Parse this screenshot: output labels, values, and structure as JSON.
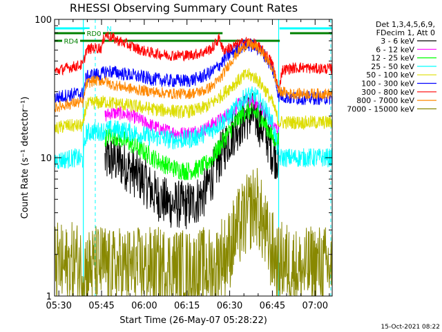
{
  "chart_data": {
    "type": "line",
    "title": "RHESSI Observing Summary Count Rates",
    "xlabel": "Start Time (26-May-07 05:28:22)",
    "ylabel": "Count Rate (s⁻¹ detector⁻¹)",
    "yscale": "log",
    "ylim": [
      1,
      100
    ],
    "xlim_minutes": [
      -1.5,
      96
    ],
    "grid": false,
    "x_ticks": [
      {
        "min": 0,
        "label": "05:30"
      },
      {
        "min": 15,
        "label": "05:45"
      },
      {
        "min": 30,
        "label": "06:00"
      },
      {
        "min": 45,
        "label": "06:15"
      },
      {
        "min": 60,
        "label": "06:30"
      },
      {
        "min": 75,
        "label": "06:45"
      },
      {
        "min": 90,
        "label": "07:00"
      }
    ],
    "y_ticks": [
      {
        "value": 1,
        "label": "1"
      },
      {
        "value": 10,
        "label": "10"
      },
      {
        "value": 100,
        "label": "100"
      }
    ],
    "legend": {
      "placement": "right",
      "header": [
        "Det 1,3,4,5,6,9,",
        "FDecim 1, Att 0"
      ]
    },
    "series": [
      {
        "name": "3 - 6 keV",
        "color": "#000000",
        "x": [
          16.2,
          18,
          21,
          24,
          27,
          30,
          33,
          36,
          39,
          42,
          45,
          48,
          51,
          54,
          57,
          60,
          63,
          66,
          69,
          72,
          75,
          77.2
        ],
        "y": [
          9.5,
          9.8,
          9.4,
          8.5,
          7.6,
          6.8,
          5.6,
          5.0,
          4.6,
          4.6,
          4.5,
          4.8,
          5.5,
          7.5,
          10.5,
          14,
          17,
          20,
          20,
          16,
          11,
          10
        ]
      },
      {
        "name": "6 - 12 keV",
        "color": "#ff00ff",
        "x": [
          16.2,
          18,
          21,
          24,
          27,
          30,
          33,
          36,
          39,
          42,
          45,
          48,
          51,
          54,
          57,
          60,
          63,
          66,
          69,
          72,
          75,
          77.2
        ],
        "y": [
          20,
          21,
          21,
          20.5,
          19.5,
          18,
          17,
          16,
          15.5,
          15,
          15,
          15.5,
          16,
          17.5,
          19,
          21,
          24,
          26,
          25,
          22,
          17,
          16
        ]
      },
      {
        "name": "12 - 25 keV",
        "color": "#00ff00",
        "x": [
          16.2,
          18,
          21,
          24,
          27,
          30,
          33,
          36,
          39,
          42,
          45,
          48,
          51,
          54,
          57,
          60,
          63,
          66,
          69,
          72,
          75,
          77.2
        ],
        "y": [
          14,
          14.5,
          14,
          13,
          12,
          11,
          10,
          9.2,
          8.6,
          8.2,
          8,
          8.2,
          8.7,
          10,
          12.5,
          15.5,
          19,
          22,
          21,
          18,
          14,
          13
        ]
      },
      {
        "name": "25 - 50 keV",
        "color": "#00ffff",
        "x": [
          -1.5,
          2,
          6,
          8.6,
          9.6,
          12,
          15,
          16.2,
          18,
          21,
          24,
          27,
          30,
          33,
          36,
          39,
          42,
          45,
          48,
          51,
          54,
          57,
          60,
          63,
          66,
          69,
          72,
          75,
          77.2,
          78.5,
          81,
          85,
          90,
          96
        ],
        "y": [
          9.5,
          9.7,
          10,
          9.6,
          15,
          15.5,
          15.5,
          15.8,
          16,
          16,
          15.5,
          15,
          14.5,
          14,
          14,
          13.5,
          13.5,
          13.5,
          14,
          15,
          16,
          18,
          20,
          24,
          28,
          28,
          23,
          18,
          10,
          10,
          10,
          10,
          10,
          10
        ]
      },
      {
        "name": "50 - 100 keV",
        "color": "#dddd00",
        "x": [
          -1.5,
          2,
          6,
          8.6,
          9.6,
          12,
          15,
          16.2,
          18,
          21,
          24,
          27,
          30,
          33,
          36,
          39,
          42,
          45,
          48,
          51,
          54,
          57,
          60,
          63,
          66,
          69,
          72,
          75,
          77.2,
          78.5,
          81,
          85,
          90,
          96
        ],
        "y": [
          16,
          17,
          17,
          17,
          24,
          25,
          25,
          25.5,
          25,
          24.5,
          24,
          23.5,
          23,
          22.5,
          22,
          22,
          21.5,
          21.5,
          22,
          23,
          25,
          28,
          32,
          36,
          40,
          38,
          32,
          25,
          18,
          18,
          18,
          18,
          18,
          18
        ]
      },
      {
        "name": "100 - 300 keV",
        "color": "#0000ff",
        "x": [
          -1.5,
          2,
          6,
          8.6,
          9.6,
          12,
          15,
          16.2,
          18,
          21,
          24,
          27,
          30,
          33,
          36,
          39,
          42,
          45,
          48,
          51,
          54,
          57,
          60,
          63,
          66,
          69,
          72,
          75,
          77.2,
          78.5,
          81,
          85,
          90,
          96
        ],
        "y": [
          27,
          28,
          29,
          29,
          38,
          40,
          40,
          42,
          42,
          41,
          40,
          39,
          38,
          37,
          36.5,
          36,
          36,
          36,
          37,
          39,
          42,
          48,
          56,
          62,
          66,
          64,
          56,
          44,
          28,
          28,
          27,
          27,
          27,
          27
        ]
      },
      {
        "name": "300 - 800 keV",
        "color": "#ff0000",
        "x": [
          -1.5,
          2,
          6,
          8.6,
          9.6,
          12,
          15,
          16.2,
          18,
          21,
          24,
          27,
          30,
          33,
          36,
          39,
          42,
          45,
          48,
          51,
          54,
          56.5,
          57.5,
          60,
          63,
          66,
          69,
          72,
          75,
          77.2,
          78.5,
          81,
          85,
          90,
          96
        ],
        "y": [
          42,
          44,
          46,
          47,
          60,
          62,
          62,
          78,
          75,
          70,
          66,
          62,
          59,
          57,
          56,
          55,
          55,
          55,
          56,
          58,
          62,
          74,
          60,
          62,
          66,
          69,
          66,
          58,
          48,
          30,
          43,
          44,
          45,
          44,
          44
        ]
      },
      {
        "name": "800 - 7000 keV",
        "color": "#ff8800",
        "x": [
          -1.5,
          2,
          6,
          8.6,
          9.6,
          12,
          15,
          16.2,
          18,
          21,
          24,
          27,
          30,
          33,
          36,
          39,
          42,
          45,
          48,
          51,
          54,
          57,
          60,
          63,
          66,
          69,
          72,
          75,
          77.2,
          78.5,
          81,
          85,
          90,
          96
        ],
        "y": [
          23,
          24,
          25,
          25,
          34,
          36,
          36,
          36,
          34,
          33,
          32,
          31,
          30.5,
          30,
          29.5,
          29,
          29,
          29,
          29.5,
          30.5,
          33,
          38,
          48,
          58,
          66,
          64,
          56,
          44,
          30,
          30,
          29,
          29,
          29,
          29
        ]
      },
      {
        "name": "7000 - 15000 keV",
        "color": "#888800",
        "x": [
          -1.5,
          2,
          6,
          8.6,
          9.6,
          16.2,
          18,
          21,
          30,
          40,
          47,
          51,
          53,
          55,
          56,
          57,
          58,
          60,
          62,
          64,
          66,
          68,
          69,
          70,
          71,
          72,
          73,
          74,
          75,
          76,
          77.2,
          78.5,
          81,
          85,
          90,
          96
        ],
        "y": [
          1.8,
          1.6,
          1.8,
          1.5,
          1.6,
          1.7,
          1.5,
          1.6,
          1.6,
          1.6,
          1.5,
          1.6,
          1.6,
          1.5,
          1.8,
          2.0,
          1.9,
          2.2,
          2.8,
          3.3,
          3.8,
          4.4,
          4.6,
          4.3,
          3.6,
          3.1,
          2.6,
          2.3,
          2.1,
          1.9,
          1.6,
          1.8,
          1.7,
          1.5,
          1.7,
          1.6
        ]
      }
    ],
    "intervals": [
      {
        "label": "N",
        "color": "#00ffff",
        "segments": [
          [
            -1.5,
            10.8
          ],
          [
            77.5,
            96
          ]
        ]
      },
      {
        "label": "RD0",
        "color": "#008000",
        "segments": [
          [
            -1.5,
            16.3
          ],
          [
            16.3,
            57.5
          ],
          [
            81.2,
            96
          ]
        ]
      },
      {
        "label": "RD4",
        "color": "#008000",
        "segments": [
          [
            -1.5,
            77.6
          ]
        ]
      }
    ],
    "vlines": {
      "solid_cyan": [
        8.6,
        77.2
      ],
      "dashed_cyan": [
        12.8,
        95.5
      ]
    }
  },
  "footer": {
    "timestamp": "15-Oct-2021 08:22"
  }
}
